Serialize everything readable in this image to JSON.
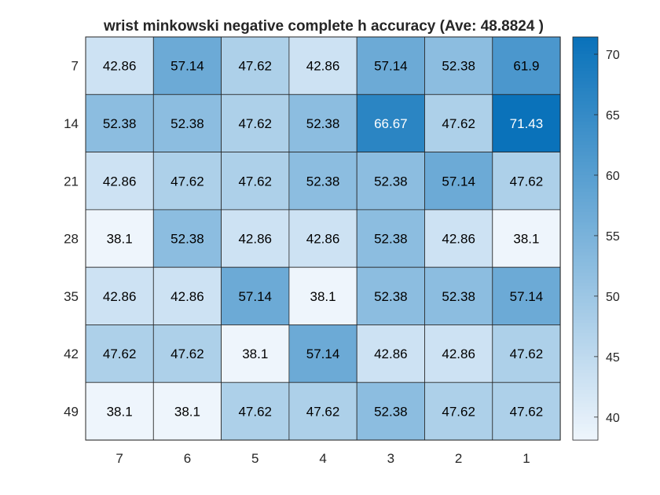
{
  "chart_data": {
    "type": "heatmap",
    "title": "wrist minkowski negative complete h accuracy (Ave:  48.8824 )",
    "x_categories": [
      "7",
      "6",
      "5",
      "4",
      "3",
      "2",
      "1"
    ],
    "y_categories": [
      "7",
      "14",
      "21",
      "28",
      "35",
      "42",
      "49"
    ],
    "values": [
      [
        42.86,
        57.14,
        47.62,
        42.86,
        57.14,
        52.38,
        61.9
      ],
      [
        52.38,
        52.38,
        47.62,
        52.38,
        66.67,
        47.62,
        71.43
      ],
      [
        42.86,
        47.62,
        47.62,
        52.38,
        52.38,
        57.14,
        47.62
      ],
      [
        38.1,
        52.38,
        42.86,
        42.86,
        52.38,
        42.86,
        38.1
      ],
      [
        42.86,
        42.86,
        57.14,
        38.1,
        52.38,
        52.38,
        57.14
      ],
      [
        47.62,
        47.62,
        38.1,
        57.14,
        42.86,
        42.86,
        47.62
      ],
      [
        38.1,
        38.1,
        47.62,
        47.62,
        52.38,
        47.62,
        47.62
      ]
    ],
    "cell_labels": [
      [
        "42.86",
        "57.14",
        "47.62",
        "42.86",
        "57.14",
        "52.38",
        "61.9"
      ],
      [
        "52.38",
        "52.38",
        "47.62",
        "52.38",
        "66.67",
        "47.62",
        "71.43"
      ],
      [
        "42.86",
        "47.62",
        "47.62",
        "52.38",
        "52.38",
        "57.14",
        "47.62"
      ],
      [
        "38.1",
        "52.38",
        "42.86",
        "42.86",
        "52.38",
        "42.86",
        "38.1"
      ],
      [
        "42.86",
        "42.86",
        "57.14",
        "38.1",
        "52.38",
        "52.38",
        "57.14"
      ],
      [
        "47.62",
        "47.62",
        "38.1",
        "57.14",
        "42.86",
        "42.86",
        "47.62"
      ],
      [
        "38.1",
        "38.1",
        "47.62",
        "47.62",
        "52.38",
        "47.62",
        "47.62"
      ]
    ],
    "colorbar": {
      "range": [
        38.1,
        71.43
      ],
      "ticks": [
        40,
        45,
        50,
        55,
        60,
        65,
        70
      ],
      "tick_labels": [
        "40",
        "45",
        "50",
        "55",
        "60",
        "65",
        "70"
      ],
      "color_low": "#eef5fc",
      "color_high": "#0a72ba",
      "placement": "right"
    },
    "grid": false
  }
}
